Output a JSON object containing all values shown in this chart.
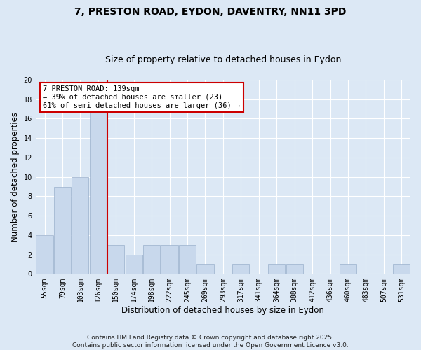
{
  "title": "7, PRESTON ROAD, EYDON, DAVENTRY, NN11 3PD",
  "subtitle": "Size of property relative to detached houses in Eydon",
  "xlabel": "Distribution of detached houses by size in Eydon",
  "ylabel": "Number of detached properties",
  "categories": [
    "55sqm",
    "79sqm",
    "103sqm",
    "126sqm",
    "150sqm",
    "174sqm",
    "198sqm",
    "222sqm",
    "245sqm",
    "269sqm",
    "293sqm",
    "317sqm",
    "341sqm",
    "364sqm",
    "388sqm",
    "412sqm",
    "436sqm",
    "460sqm",
    "483sqm",
    "507sqm",
    "531sqm"
  ],
  "values": [
    4,
    9,
    10,
    17,
    3,
    2,
    3,
    3,
    3,
    1,
    0,
    1,
    0,
    1,
    1,
    0,
    0,
    1,
    0,
    0,
    1
  ],
  "bar_color": "#c8d8ec",
  "bar_edge_color": "#9ab0cc",
  "vline_color": "#cc0000",
  "annotation_text": "7 PRESTON ROAD: 139sqm\n← 39% of detached houses are smaller (23)\n61% of semi-detached houses are larger (36) →",
  "annotation_box_color": "#ffffff",
  "annotation_box_edge_color": "#cc0000",
  "ylim": [
    0,
    20
  ],
  "yticks": [
    0,
    2,
    4,
    6,
    8,
    10,
    12,
    14,
    16,
    18,
    20
  ],
  "background_color": "#dce8f5",
  "grid_color": "#ffffff",
  "footer": "Contains HM Land Registry data © Crown copyright and database right 2025.\nContains public sector information licensed under the Open Government Licence v3.0.",
  "title_fontsize": 10,
  "subtitle_fontsize": 9,
  "label_fontsize": 8.5,
  "tick_fontsize": 7,
  "footer_fontsize": 6.5,
  "annot_fontsize": 7.5
}
